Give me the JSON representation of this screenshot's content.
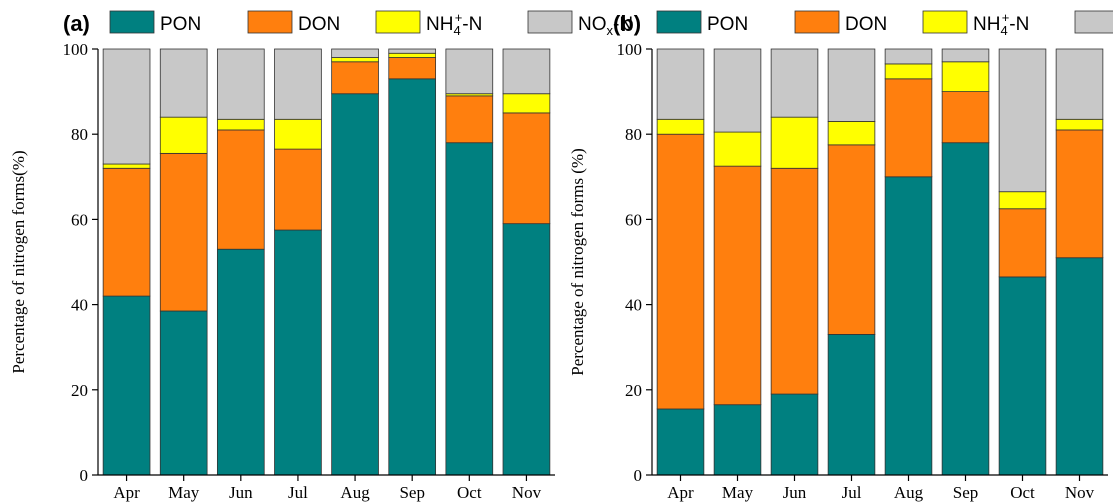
{
  "legend_items": [
    {
      "key": "PON",
      "label": "PON",
      "color": "#008080"
    },
    {
      "key": "DON",
      "label": "DON",
      "color": "#ff7f0e"
    },
    {
      "key": "NH4",
      "label_main": "NH",
      "label_sub": "4",
      "label_sup": "+",
      "label_tail": "-N",
      "color": "#ffff00"
    },
    {
      "key": "NOx",
      "label_main": "NO",
      "label_sub": "x",
      "label_tail": "-N",
      "color": "#c8c8c8"
    }
  ],
  "chart_data": [
    {
      "panel_label": "(a)",
      "type": "bar",
      "stacked": true,
      "categories": [
        "Apr",
        "May",
        "Jun",
        "Jul",
        "Aug",
        "Sep",
        "Oct",
        "Nov"
      ],
      "series": [
        {
          "name": "PON",
          "values": [
            42,
            38.5,
            53,
            57.5,
            89.5,
            93,
            78,
            59
          ]
        },
        {
          "name": "DON",
          "values": [
            30,
            37,
            28,
            19,
            7.5,
            5,
            11,
            26
          ]
        },
        {
          "name": "NH4+-N",
          "values": [
            1,
            8.5,
            2.5,
            7,
            1,
            1,
            0.5,
            4.5
          ]
        },
        {
          "name": "NOx-N",
          "values": [
            27,
            16,
            16.5,
            16.5,
            2,
            1,
            10.5,
            10.5
          ]
        }
      ],
      "ylabel": "Percentage of nitrogen forms(%)",
      "ylim": [
        0,
        100
      ],
      "yticks": [
        0,
        20,
        40,
        60,
        80,
        100
      ],
      "grid": false,
      "legend": "top"
    },
    {
      "panel_label": "(b)",
      "type": "bar",
      "stacked": true,
      "categories": [
        "Apr",
        "May",
        "Jun",
        "Jul",
        "Aug",
        "Sep",
        "Oct",
        "Nov"
      ],
      "series": [
        {
          "name": "PON",
          "values": [
            15.5,
            16.5,
            19,
            33,
            70,
            78,
            46.5,
            51
          ]
        },
        {
          "name": "DON",
          "values": [
            64.5,
            56,
            53,
            44.5,
            23,
            12,
            16,
            30
          ]
        },
        {
          "name": "NH4+-N",
          "values": [
            3.5,
            8,
            12,
            5.5,
            3.5,
            7,
            4,
            2.5
          ]
        },
        {
          "name": "NOx-N",
          "values": [
            16.5,
            19.5,
            16,
            17,
            3.5,
            3,
            33.5,
            16.5
          ]
        }
      ],
      "ylabel": "Percentage of nitrogen forms (%)",
      "ylim": [
        0,
        100
      ],
      "yticks": [
        0,
        20,
        40,
        60,
        80,
        100
      ],
      "grid": false,
      "legend": "top"
    }
  ]
}
